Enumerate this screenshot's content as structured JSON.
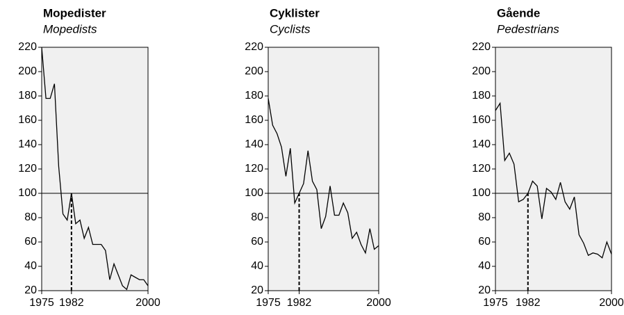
{
  "chart_data": [
    {
      "type": "line",
      "title": "Mopedister",
      "subtitle": "Mopedists",
      "x": [
        1975,
        1976,
        1977,
        1978,
        1979,
        1980,
        1981,
        1982,
        1983,
        1984,
        1985,
        1986,
        1987,
        1988,
        1989,
        1990,
        1991,
        1992,
        1993,
        1994,
        1995,
        1996,
        1997,
        1998,
        1999,
        2000
      ],
      "values": [
        220,
        178,
        178,
        190,
        122,
        83,
        78,
        100,
        75,
        78,
        63,
        72,
        58,
        58,
        58,
        53,
        29,
        42,
        33,
        24,
        21,
        33,
        31,
        29,
        29,
        24
      ],
      "xlim": [
        1975,
        2000
      ],
      "xticks": [
        1975,
        1982,
        2000
      ],
      "ylim": [
        20,
        220
      ],
      "yticks": [
        20,
        40,
        60,
        80,
        100,
        120,
        140,
        160,
        180,
        200,
        220
      ],
      "reference_line": 100,
      "marker_x": 1982,
      "color": "#000000",
      "background": "#f0f0f0"
    },
    {
      "type": "line",
      "title": "Cyklister",
      "subtitle": "Cyclists",
      "x": [
        1975,
        1976,
        1977,
        1978,
        1979,
        1980,
        1981,
        1982,
        1983,
        1984,
        1985,
        1986,
        1987,
        1988,
        1989,
        1990,
        1991,
        1992,
        1993,
        1994,
        1995,
        1996,
        1997,
        1998,
        1999,
        2000
      ],
      "values": [
        178,
        156,
        149,
        138,
        114,
        137,
        92,
        100,
        108,
        135,
        110,
        103,
        71,
        81,
        106,
        82,
        82,
        92,
        84,
        63,
        68,
        58,
        51,
        71,
        54,
        57
      ],
      "xlim": [
        1975,
        2000
      ],
      "xticks": [
        1975,
        1982,
        2000
      ],
      "ylim": [
        20,
        220
      ],
      "yticks": [
        20,
        40,
        60,
        80,
        100,
        120,
        140,
        160,
        180,
        200,
        220
      ],
      "reference_line": 100,
      "marker_x": 1982,
      "color": "#000000",
      "background": "#f0f0f0"
    },
    {
      "type": "line",
      "title": "Gående",
      "subtitle": "Pedestrians",
      "x": [
        1975,
        1976,
        1977,
        1978,
        1979,
        1980,
        1981,
        1982,
        1983,
        1984,
        1985,
        1986,
        1987,
        1988,
        1989,
        1990,
        1991,
        1992,
        1993,
        1994,
        1995,
        1996,
        1997,
        1998,
        1999,
        2000
      ],
      "values": [
        168,
        174,
        127,
        133,
        124,
        93,
        95,
        100,
        110,
        106,
        79,
        104,
        101,
        95,
        109,
        93,
        87,
        97,
        66,
        59,
        49,
        51,
        50,
        47,
        60,
        50
      ],
      "xlim": [
        1975,
        2000
      ],
      "xticks": [
        1975,
        1982,
        2000
      ],
      "ylim": [
        20,
        220
      ],
      "yticks": [
        20,
        40,
        60,
        80,
        100,
        120,
        140,
        160,
        180,
        200,
        220
      ],
      "reference_line": 100,
      "marker_x": 1982,
      "color": "#000000",
      "background": "#f0f0f0"
    }
  ]
}
